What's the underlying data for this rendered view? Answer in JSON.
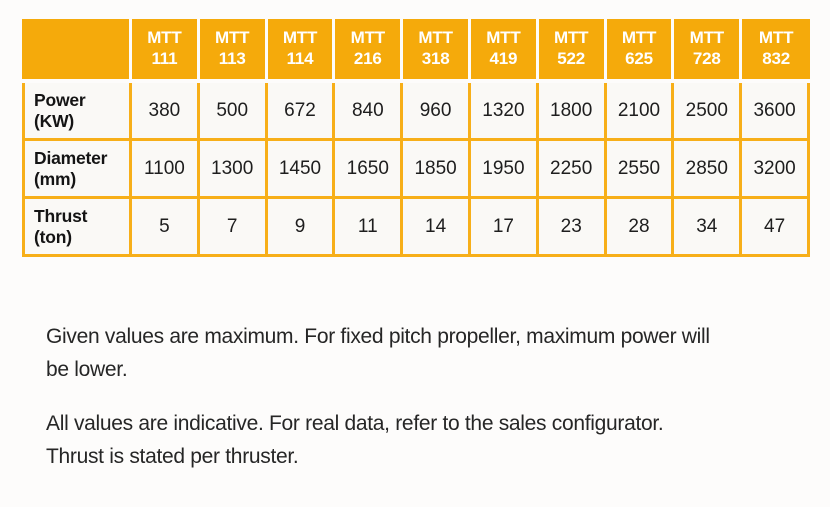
{
  "table": {
    "corner": "",
    "columns": [
      "MTT\n111",
      "MTT\n113",
      "MTT\n114",
      "MTT\n216",
      "MTT\n318",
      "MTT\n419",
      "MTT\n522",
      "MTT\n625",
      "MTT\n728",
      "MTT\n832"
    ],
    "rows": [
      {
        "label": "Power\n(KW)",
        "values": [
          "380",
          "500",
          "672",
          "840",
          "960",
          "1320",
          "1800",
          "2100",
          "2500",
          "3600"
        ]
      },
      {
        "label": "Diameter\n(mm)",
        "values": [
          "1100",
          "1300",
          "1450",
          "1650",
          "1850",
          "1950",
          "2250",
          "2550",
          "2850",
          "3200"
        ]
      },
      {
        "label": "Thrust\n(ton)",
        "values": [
          "5",
          "7",
          "9",
          "11",
          "14",
          "17",
          "23",
          "28",
          "34",
          "47"
        ]
      }
    ]
  },
  "notes": [
    {
      "lines": [
        "Given values are maximum. For fixed pitch propeller, maximum power will",
        "be lower."
      ]
    },
    {
      "lines": [
        "All values are indicative. For real data, refer to the sales configurator.",
        "Thrust is stated per thruster."
      ]
    }
  ],
  "colors": {
    "page_bg": "#FDFCFB",
    "header_bg": "#F5AA0B",
    "grid_line": "#F7AF19",
    "cell_bg": "#FAF9F6",
    "header_text": "#FFFFFF",
    "body_text": "#1E1E1E"
  }
}
